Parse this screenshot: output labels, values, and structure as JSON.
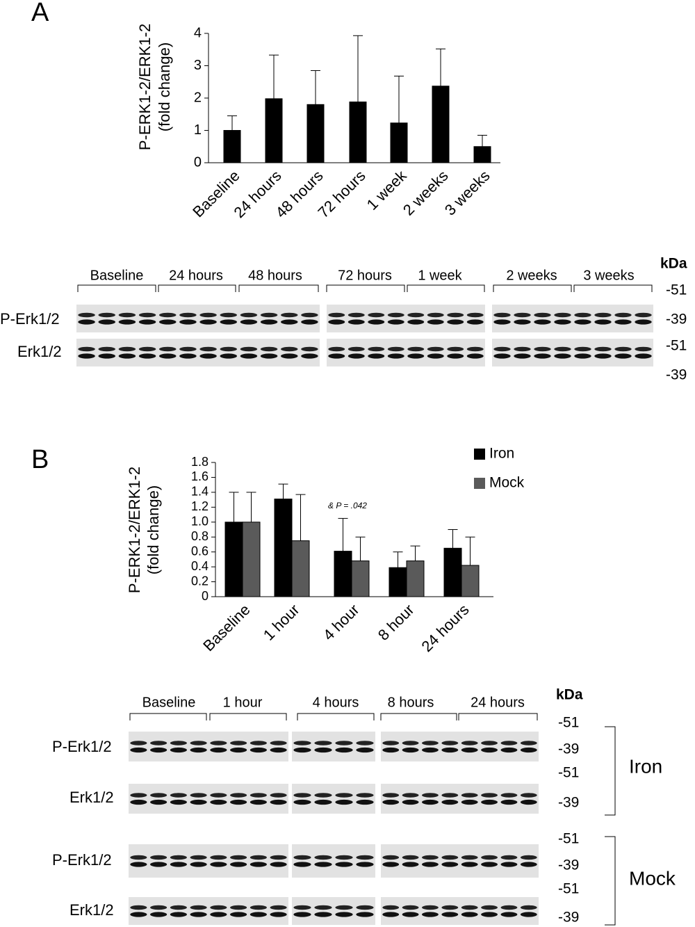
{
  "chart_data": [
    {
      "type": "bar",
      "panel": "A",
      "ylabel": [
        "P-ERK1-2/ERK1-2",
        "(fold change)"
      ],
      "categories": [
        "Baseline",
        "24 hours",
        "48 hours",
        "72 hours",
        "1 week",
        "2 weeks",
        "3 weeks"
      ],
      "series": [
        {
          "name": null,
          "color": "#000000",
          "values": [
            1.0,
            1.98,
            1.8,
            1.88,
            1.23,
            2.37,
            0.5
          ],
          "errors": [
            0.45,
            1.35,
            1.05,
            2.05,
            1.45,
            1.15,
            0.35
          ]
        }
      ],
      "ylim": [
        0,
        4
      ],
      "yticks": [
        0,
        1,
        2,
        3,
        4
      ]
    },
    {
      "type": "bar",
      "panel": "B",
      "ylabel": [
        "P-ERK1-2/ERK1-2",
        "(fold change)"
      ],
      "categories": [
        "Baseline",
        "1 hour",
        "4 hour",
        "8 hour",
        "24 hours"
      ],
      "series": [
        {
          "name": "Iron",
          "color": "#000000",
          "values": [
            1.0,
            1.31,
            0.61,
            0.39,
            0.65
          ],
          "errors": [
            0.4,
            0.2,
            0.44,
            0.21,
            0.25
          ]
        },
        {
          "name": "Mock",
          "color": "#5a5a5a",
          "values": [
            1.0,
            0.75,
            0.48,
            0.48,
            0.42
          ],
          "errors": [
            0.4,
            0.62,
            0.32,
            0.2,
            0.38
          ]
        }
      ],
      "annotation": "& P = .042",
      "ylim": [
        0,
        1.8
      ],
      "yticks": [
        0,
        0.2,
        0.4,
        0.6,
        0.8,
        {
          "value": 1,
          "label": "1.0"
        },
        1.2,
        1.4,
        1.6,
        1.8
      ],
      "legend": "top-right"
    }
  ],
  "blots": [
    {
      "groups": [
        "Baseline",
        "24 hours",
        "48 hours",
        "72 hours",
        "1 week",
        "2 weeks",
        "3 weeks"
      ],
      "rows": [
        "P-Erk1/2",
        "Erk1/2"
      ],
      "unit": "kDa",
      "markers": [
        "-51",
        "-39",
        "-51",
        "-39"
      ]
    },
    {
      "groups": [
        "Baseline",
        "1 hour",
        "4 hours",
        "8 hours",
        "24 hours"
      ],
      "rows": [
        "P-Erk1/2",
        "Erk1/2",
        "P-Erk1/2",
        "Erk1/2"
      ],
      "unit": "kDa",
      "markers": [
        "-51",
        "-39",
        "-51",
        "-39",
        "-51",
        "-39",
        "-51",
        "-39"
      ],
      "conditions": [
        "Iron",
        "Mock"
      ]
    }
  ]
}
